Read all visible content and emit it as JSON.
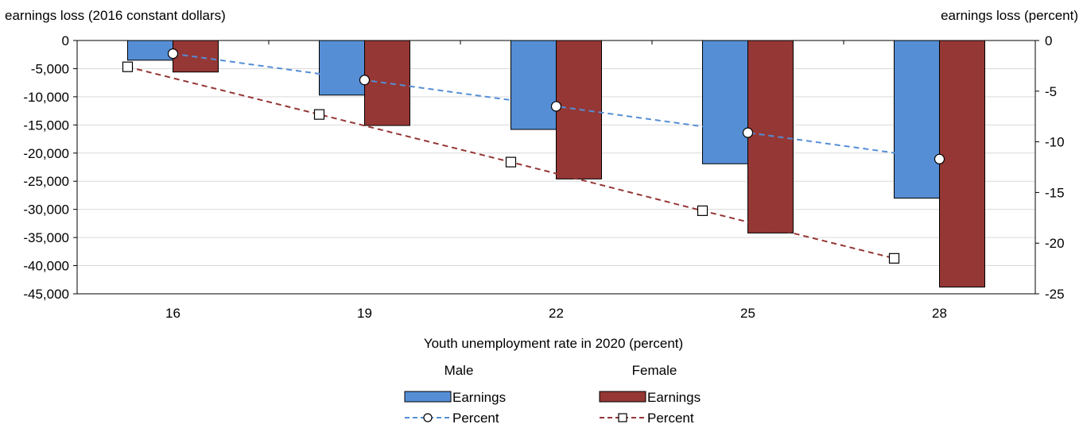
{
  "chart_data": {
    "type": "bar",
    "title": "",
    "xlabel": "Youth unemployment rate in 2020 (percent)",
    "y_left_label": "earnings loss (2016 constant dollars)",
    "y_right_label": "earnings loss (percent)",
    "categories": [
      "16",
      "19",
      "22",
      "25",
      "28"
    ],
    "y_left_ticks": [
      "0",
      "-5,000",
      "-10,000",
      "-15,000",
      "-20,000",
      "-25,000",
      "-30,000",
      "-35,000",
      "-40,000",
      "-45,000"
    ],
    "y_right_ticks": [
      "0",
      "-5",
      "-10",
      "-15",
      "-20",
      "-25"
    ],
    "ylim_left": [
      -45000,
      0
    ],
    "ylim_right": [
      -25,
      0
    ],
    "grid": true,
    "legend_position": "bottom",
    "legend_groups": [
      "Male",
      "Female"
    ],
    "series": [
      {
        "group": "Male",
        "legend_label": "Earnings",
        "kind": "bar",
        "axis": "left",
        "color": "#558ed5",
        "values": [
          -3500,
          -9700,
          -15800,
          -21900,
          -28000
        ]
      },
      {
        "group": "Female",
        "legend_label": "Earnings",
        "kind": "bar",
        "axis": "left",
        "color": "#953735",
        "values": [
          -5600,
          -15100,
          -24600,
          -34200,
          -43800
        ]
      },
      {
        "group": "Male",
        "legend_label": "Percent",
        "kind": "line",
        "axis": "right",
        "color": "#558ed5",
        "marker": "circle",
        "values": [
          -1.3,
          -3.9,
          -6.5,
          -9.1,
          -11.7
        ]
      },
      {
        "group": "Female",
        "legend_label": "Percent",
        "kind": "line",
        "axis": "right",
        "color": "#953735",
        "marker": "square",
        "values": [
          -2.6,
          -7.3,
          -12.0,
          -16.8,
          -21.5
        ]
      }
    ]
  }
}
